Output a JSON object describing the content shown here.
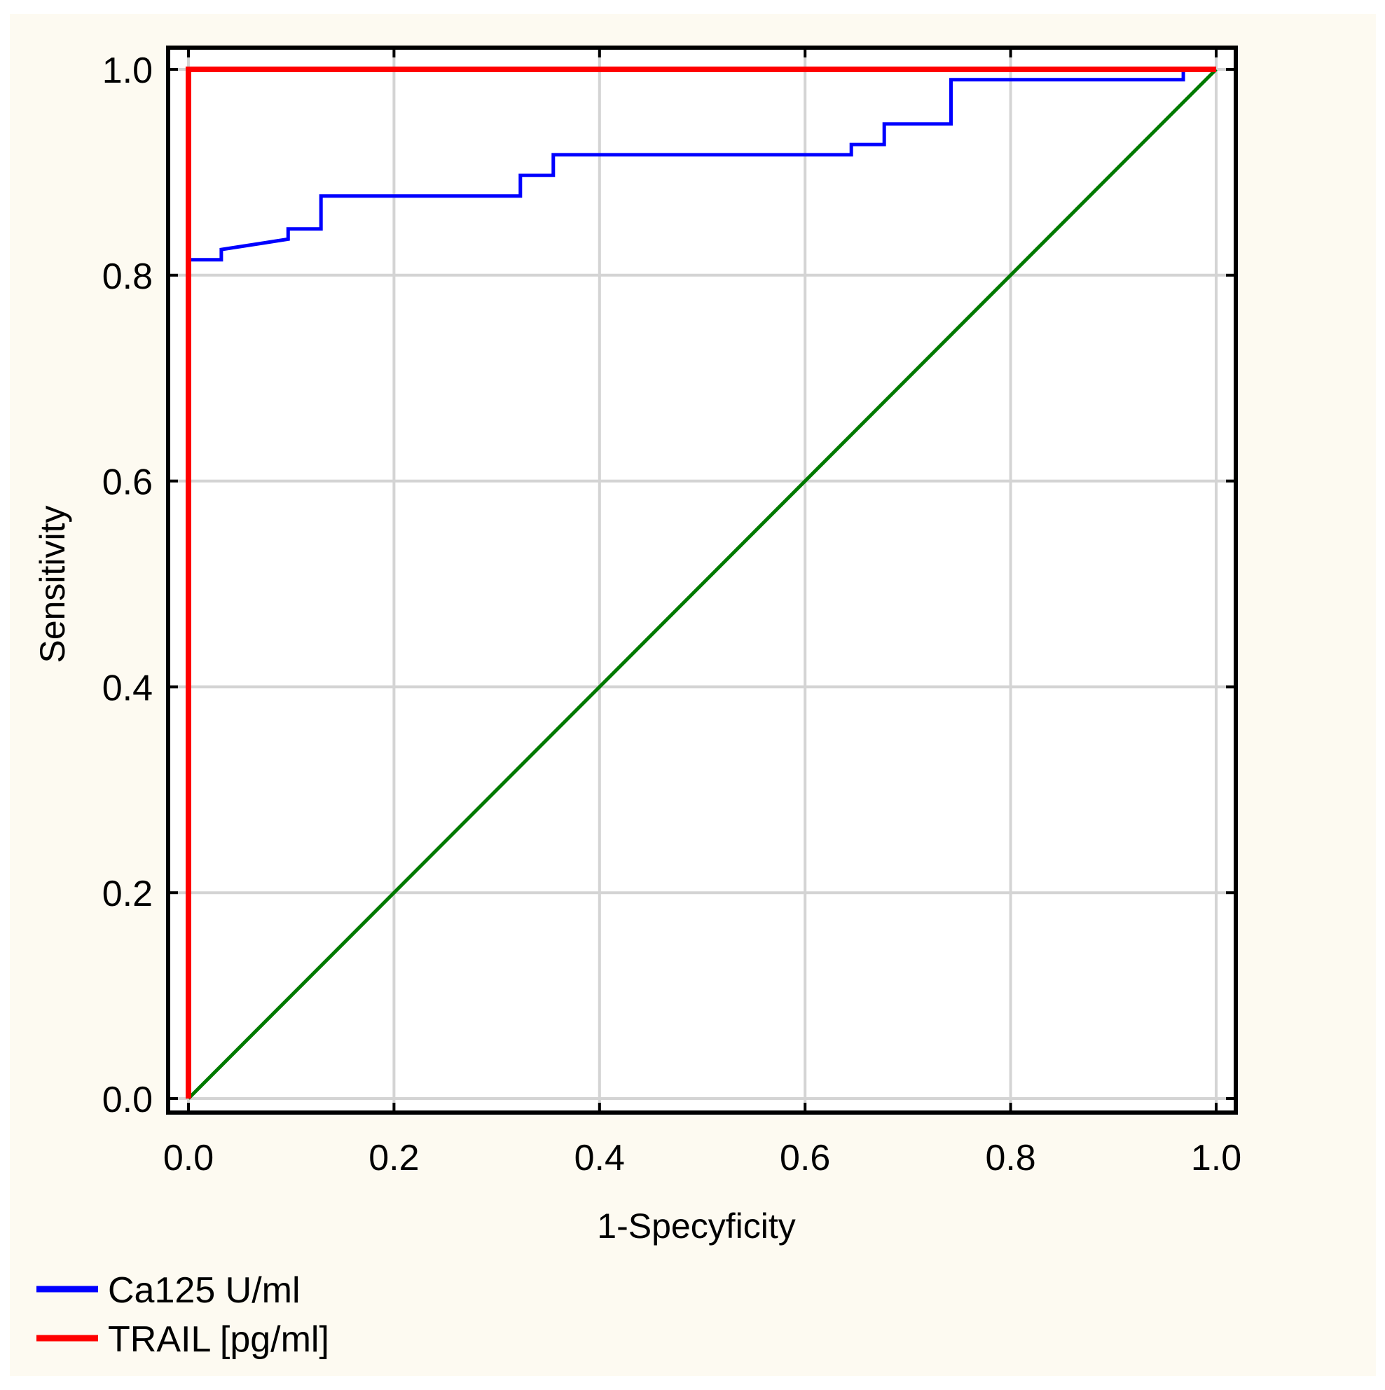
{
  "colors": {
    "background": "#fdfaf1",
    "plot_background": "#ffffff",
    "grid": "#d4d4d4",
    "axis": "#000000",
    "ca125": "#0000ff",
    "trail": "#ff0000",
    "reference": "#007a00"
  },
  "chart_data": {
    "type": "line",
    "title": "",
    "xlabel": "1-Specyficity",
    "ylabel": "Sensitivity",
    "xlim": [
      0,
      1
    ],
    "ylim": [
      0,
      1
    ],
    "xticks": [
      "0.0",
      "0.2",
      "0.4",
      "0.6",
      "0.8",
      "1.0"
    ],
    "yticks": [
      "0.0",
      "0.2",
      "0.4",
      "0.6",
      "0.8",
      "1.0"
    ],
    "grid": true,
    "legend_position": "bottom-left",
    "series": [
      {
        "name": "Ca125 U/ml",
        "color": "#0000ff",
        "points": [
          [
            0.0,
            0.815
          ],
          [
            0.032,
            0.815
          ],
          [
            0.032,
            0.825
          ],
          [
            0.097,
            0.835
          ],
          [
            0.097,
            0.845
          ],
          [
            0.129,
            0.845
          ],
          [
            0.129,
            0.877
          ],
          [
            0.323,
            0.877
          ],
          [
            0.323,
            0.897
          ],
          [
            0.355,
            0.897
          ],
          [
            0.355,
            0.917
          ],
          [
            0.645,
            0.917
          ],
          [
            0.645,
            0.927
          ],
          [
            0.677,
            0.927
          ],
          [
            0.677,
            0.947
          ],
          [
            0.742,
            0.947
          ],
          [
            0.742,
            0.99
          ],
          [
            0.968,
            0.99
          ],
          [
            0.968,
            1.0
          ],
          [
            1.0,
            1.0
          ]
        ]
      },
      {
        "name": "TRAIL [pg/ml]",
        "color": "#ff0000",
        "points": [
          [
            0.0,
            0.0
          ],
          [
            0.0,
            1.0
          ],
          [
            1.0,
            1.0
          ]
        ]
      },
      {
        "color": "#007a00",
        "points": [
          [
            0.0,
            0.0
          ],
          [
            1.0,
            1.0
          ]
        ]
      }
    ]
  }
}
